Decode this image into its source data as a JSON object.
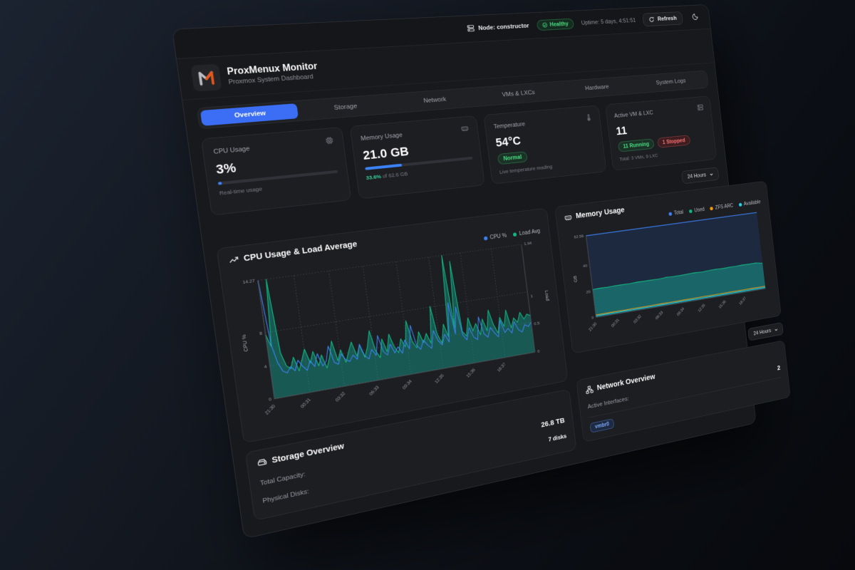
{
  "topbar": {
    "node_label": "Node: constructor",
    "health_label": "Healthy",
    "uptime": "Uptime: 5 days, 4:51:51",
    "refresh_label": "Refresh"
  },
  "header": {
    "title": "ProxMenux Monitor",
    "subtitle": "Proxmox System Dashboard"
  },
  "tabs": [
    {
      "label": "Overview",
      "active": true
    },
    {
      "label": "Storage",
      "active": false
    },
    {
      "label": "Network",
      "active": false
    },
    {
      "label": "VMs & LXCs",
      "active": false
    },
    {
      "label": "Hardware",
      "active": false
    },
    {
      "label": "System Logs",
      "active": false
    }
  ],
  "stats": {
    "cpu": {
      "title": "CPU Usage",
      "value": "3%",
      "percent": 3,
      "caption": "Real-time usage"
    },
    "memory": {
      "title": "Memory Usage",
      "value": "21.0 GB",
      "percent": 33.6,
      "caption_highlight": "33.6%",
      "caption_rest": " of 62.6 GB"
    },
    "temperature": {
      "title": "Temperature",
      "value": "54°C",
      "badge": "Normal",
      "caption": "Live temperature reading"
    },
    "vms": {
      "title": "Active VM & LXC",
      "value": "11",
      "running_badge": "11 Running",
      "stopped_badge": "1 Stopped",
      "caption": "Total: 3 VMs, 9 LXC"
    }
  },
  "time_range_primary": {
    "label": "24 Hours"
  },
  "time_range_secondary": {
    "label": "24 Hours"
  },
  "storage": {
    "title": "Storage Overview",
    "rows": [
      {
        "label": "Total Capacity:",
        "value": "26.8 TB"
      },
      {
        "label": "Physical Disks:",
        "value": "7 disks"
      }
    ]
  },
  "network": {
    "title": "Network Overview",
    "interfaces_label": "Active Interfaces:",
    "interfaces_value": "2",
    "badges": [
      "vmbr0"
    ]
  },
  "colors": {
    "accent_blue": "#3b6ef5",
    "progress_blue": "#3b82f6",
    "green": "#10b981",
    "teal_fill": "rgba(23,161,145,0.45)",
    "orange": "#f59e0b",
    "cyan": "#22d3ee",
    "healthy_green": "#4ade80",
    "stopped_red": "#f87171"
  },
  "chart_data": [
    {
      "type": "area",
      "title": "CPU Usage & Load Average",
      "legend": [
        {
          "name": "CPU %",
          "color": "#3b82f6"
        },
        {
          "name": "Load Avg",
          "color": "#10b981"
        }
      ],
      "x_ticks": [
        "21:30",
        "00:31",
        "03:32",
        "06:33",
        "09:34",
        "12:35",
        "15:36",
        "18:37"
      ],
      "y_left": {
        "label": "CPU %",
        "ticks": [
          0,
          4,
          8,
          14.27
        ],
        "max": 14.27
      },
      "y_right": {
        "label": "Load",
        "ticks": [
          0,
          0.5,
          1,
          1.94
        ],
        "max": 1.94
      },
      "grid": true,
      "legend_position": "top-right",
      "series": [
        {
          "name": "Load Avg",
          "axis": "right",
          "color": "#10b981",
          "fill": "rgba(23,161,145,0.45)",
          "values": [
            1.05,
            0.85,
            1.94,
            0.72,
            0.5,
            0.44,
            0.62,
            0.38,
            0.55,
            0.72,
            0.48,
            0.66,
            0.41,
            0.58,
            0.35,
            0.52,
            0.78,
            0.44,
            0.61,
            0.39,
            0.56,
            0.71,
            0.46,
            0.64,
            0.42,
            0.59,
            0.85,
            0.5,
            0.37,
            0.68,
            0.45,
            0.74,
            0.52,
            0.4,
            0.63,
            0.48,
            0.92,
            0.55,
            0.43,
            0.7,
            0.5,
            0.65,
            0.47,
            1.1,
            0.6,
            0.44,
            0.76,
            0.53,
            1.94,
            0.66,
            1.82,
            0.58,
            0.49,
            0.8,
            0.56,
            0.68,
            0.47,
            0.74,
            0.52,
            0.88,
            0.61,
            0.45,
            0.72,
            0.55,
            0.83,
            0.5,
            0.67,
            0.58,
            0.75,
            0.62,
            0.7,
            0.66
          ]
        },
        {
          "name": "CPU %",
          "axis": "left",
          "color": "#3b82f6",
          "fill": "none",
          "values": [
            14.27,
            6.5,
            4.2,
            3.1,
            2.8,
            3.5,
            2.9,
            4.1,
            3.3,
            2.7,
            3.8,
            3.0,
            4.5,
            2.9,
            3.4,
            5.2,
            3.1,
            2.8,
            4.0,
            3.2,
            2.9,
            3.6,
            3.0,
            4.8,
            3.3,
            2.8,
            3.9,
            3.1,
            5.5,
            3.4,
            2.9,
            4.2,
            3.0,
            3.7,
            2.8,
            4.4,
            3.2,
            6.1,
            3.5,
            2.9,
            4.0,
            3.3,
            2.8,
            5.0,
            3.6,
            3.0,
            4.3,
            3.2,
            8.2,
            4.1,
            7.5,
            3.8,
            3.1,
            4.6,
            3.3,
            2.9,
            5.8,
            3.5,
            3.0,
            4.2,
            3.4,
            2.8,
            4.9,
            3.2,
            3.7,
            3.0,
            4.4,
            3.3,
            2.9,
            3.8,
            3.5,
            4.0
          ]
        }
      ]
    },
    {
      "type": "area",
      "title": "Memory Usage",
      "legend": [
        {
          "name": "Total",
          "color": "#3b82f6"
        },
        {
          "name": "Used",
          "color": "#10b981"
        },
        {
          "name": "ZFS ARC",
          "color": "#f59e0b"
        },
        {
          "name": "Available",
          "color": "#22d3ee"
        }
      ],
      "x_ticks": [
        "21:30",
        "00:31",
        "03:32",
        "06:33",
        "09:34",
        "12:35",
        "15:36",
        "18:37"
      ],
      "y_left": {
        "label": "GB",
        "ticks": [
          0,
          20,
          40,
          62.56
        ],
        "max": 62.56
      },
      "grid": true,
      "legend_position": "top-right",
      "series": [
        {
          "name": "Total",
          "axis": "left",
          "color": "#3b82f6",
          "fill": "rgba(30,42,66,0.9)",
          "values": [
            62.56,
            62.56,
            62.56,
            62.56,
            62.56,
            62.56,
            62.56,
            62.56,
            62.56,
            62.56,
            62.56,
            62.56,
            62.56,
            62.56,
            62.56,
            62.56,
            62.56,
            62.56,
            62.56,
            62.56,
            62.56,
            62.56,
            62.56,
            62.56,
            62.56
          ]
        },
        {
          "name": "Used",
          "axis": "left",
          "color": "#10b981",
          "fill": "rgba(23,161,145,0.5)",
          "values": [
            21.4,
            21.5,
            21.3,
            21.6,
            21.5,
            21.4,
            21.7,
            21.5,
            21.6,
            21.4,
            21.8,
            21.6,
            21.5,
            21.7,
            21.9,
            21.6,
            21.8,
            22.0,
            21.7,
            21.9,
            21.8,
            22.1,
            21.9,
            22.0,
            21.0
          ]
        },
        {
          "name": "ZFS ARC",
          "axis": "left",
          "color": "#f59e0b",
          "fill": "none",
          "values": [
            1.8,
            1.8,
            1.9,
            1.8,
            1.8,
            1.9,
            1.9,
            1.8,
            1.9,
            2.0,
            1.9,
            1.9,
            2.0,
            1.9,
            2.0,
            2.0,
            1.9,
            2.0,
            2.0,
            2.1,
            2.0,
            2.0,
            2.1,
            2.0,
            2.0
          ]
        },
        {
          "name": "Available",
          "axis": "left",
          "color": "#22d3ee",
          "fill": "none",
          "values": [
            1.0,
            1.1,
            1.0,
            1.0,
            1.1,
            1.0,
            1.1,
            1.0,
            1.0,
            1.1,
            1.0,
            1.1,
            1.0,
            1.1,
            1.0,
            1.0,
            1.1,
            1.0,
            1.1,
            1.0,
            1.1,
            1.0,
            1.0,
            1.1,
            1.0
          ]
        }
      ]
    }
  ]
}
